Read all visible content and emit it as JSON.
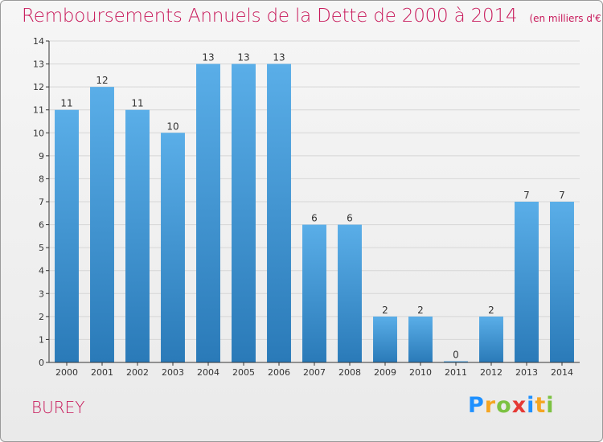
{
  "title": "Remboursements Annuels de la Dette de 2000 à 2014",
  "unit": "(en milliers d'€)",
  "commune": "BUREY",
  "logo": {
    "letters": [
      "P",
      "r",
      "o",
      "x",
      "i",
      "t",
      "i"
    ]
  },
  "colors": {
    "title": "#c8195a",
    "bar_top": "#5aaee8",
    "bar_bottom": "#2a7ab8",
    "axis": "#333333",
    "grid": "#cccccc"
  },
  "chart_data": {
    "type": "bar",
    "categories": [
      "2000",
      "2001",
      "2002",
      "2003",
      "2004",
      "2005",
      "2006",
      "2007",
      "2008",
      "2009",
      "2010",
      "2011",
      "2012",
      "2013",
      "2014"
    ],
    "values": [
      11,
      12,
      11,
      10,
      13,
      13,
      13,
      6,
      6,
      2,
      2,
      0,
      2,
      7,
      7
    ],
    "data_labels": [
      "11",
      "12",
      "11",
      "10",
      "13",
      "13",
      "13",
      "6",
      "6",
      "2",
      "2",
      "0",
      "2",
      "7",
      "7"
    ],
    "y_ticks": [
      "0",
      "1",
      "2",
      "3",
      "4",
      "5",
      "6",
      "7",
      "8",
      "9",
      "10",
      "11",
      "12",
      "13",
      "14"
    ],
    "ylim": [
      0,
      14
    ],
    "xlabel": "",
    "ylabel": ""
  }
}
